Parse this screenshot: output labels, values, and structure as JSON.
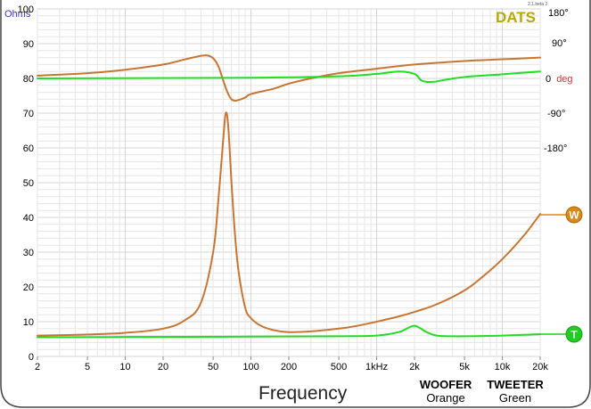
{
  "version": "2.1.beta 2",
  "brand": "DATS",
  "units_label": "Ohms",
  "phase_labels": [
    "180°",
    "90°",
    "-90°",
    "-180°"
  ],
  "phase_zero_num": "0",
  "phase_zero_unit": "deg",
  "frequency_label": "Frequency",
  "legend": {
    "woofer_name": "WOOFER",
    "woofer_color_name": "Orange",
    "tweeter_name": "TWEETER",
    "tweeter_color_name": "Green"
  },
  "markers": {
    "woofer": "W",
    "tweeter": "T"
  },
  "colors": {
    "woofer": "#c87533",
    "tweeter": "#22dd22",
    "woofer_marker": "#d98a16",
    "tweeter_marker": "#1ecf1e",
    "units": "#3333cc",
    "deg": "#cc3333",
    "brand": "#b8a800",
    "grid": "#e6e6e6",
    "frame": "#444444"
  },
  "chart_data": {
    "type": "line",
    "xscale": "log",
    "xlim": [
      2,
      20000
    ],
    "ylim": [
      0,
      100
    ],
    "x_tick_labels": [
      "2",
      "5",
      "10",
      "20",
      "50",
      "100",
      "200",
      "500",
      "1kHz",
      "2k",
      "5k",
      "10k",
      "20k"
    ],
    "x_tick_values": [
      2,
      5,
      10,
      20,
      50,
      100,
      200,
      500,
      1000,
      2000,
      5000,
      10000,
      20000
    ],
    "y_ticks": [
      0,
      10,
      20,
      30,
      40,
      50,
      60,
      70,
      80,
      90,
      100
    ],
    "grid": true,
    "series": [
      {
        "name": "WOOFER",
        "kind": "impedance",
        "x": [
          2,
          5,
          10,
          20,
          30,
          40,
          50,
          55,
          60,
          63,
          66,
          70,
          75,
          80,
          90,
          100,
          120,
          150,
          200,
          300,
          500,
          700,
          1000,
          1500,
          2000,
          3000,
          5000,
          7000,
          10000,
          15000,
          20000
        ],
        "y": [
          6.0,
          6.3,
          6.8,
          8.0,
          10.5,
          15.5,
          30,
          45,
          62,
          70,
          66,
          50,
          34,
          24,
          14,
          11,
          8.8,
          7.6,
          7.0,
          7.2,
          8.0,
          8.8,
          10,
          11.5,
          12.8,
          15,
          19,
          23,
          28,
          35,
          41
        ]
      },
      {
        "name": "TWEETER",
        "kind": "impedance",
        "x": [
          2,
          10,
          100,
          500,
          1000,
          1500,
          1800,
          2000,
          2200,
          2500,
          3000,
          4000,
          5000,
          10000,
          20000
        ],
        "y": [
          5.5,
          5.6,
          5.7,
          5.8,
          6.0,
          7.0,
          8.3,
          8.8,
          8.2,
          7.0,
          6.0,
          5.8,
          5.8,
          6.0,
          6.4
        ]
      },
      {
        "name": "WOOFER",
        "kind": "phase",
        "x": [
          2,
          5,
          10,
          20,
          30,
          40,
          45,
          50,
          55,
          60,
          65,
          70,
          75,
          80,
          90,
          100,
          150,
          200,
          300,
          500,
          1000,
          2000,
          5000,
          10000,
          20000
        ],
        "y": [
          80.8,
          81.5,
          82.5,
          84.0,
          85.5,
          86.5,
          86.6,
          85.8,
          83.5,
          79.5,
          76.0,
          74.0,
          73.6,
          73.8,
          74.5,
          75.5,
          77.0,
          78.5,
          80.0,
          81.5,
          82.8,
          84.0,
          85.0,
          85.5,
          86.0
        ]
      },
      {
        "name": "TWEETER",
        "kind": "phase",
        "x": [
          2,
          100,
          500,
          1000,
          1500,
          2000,
          2300,
          2800,
          3500,
          5000,
          10000,
          20000
        ],
        "y": [
          80.0,
          80.2,
          80.6,
          81.3,
          82.0,
          81.3,
          79.3,
          79.0,
          79.6,
          80.4,
          81.2,
          82.0
        ]
      }
    ]
  }
}
